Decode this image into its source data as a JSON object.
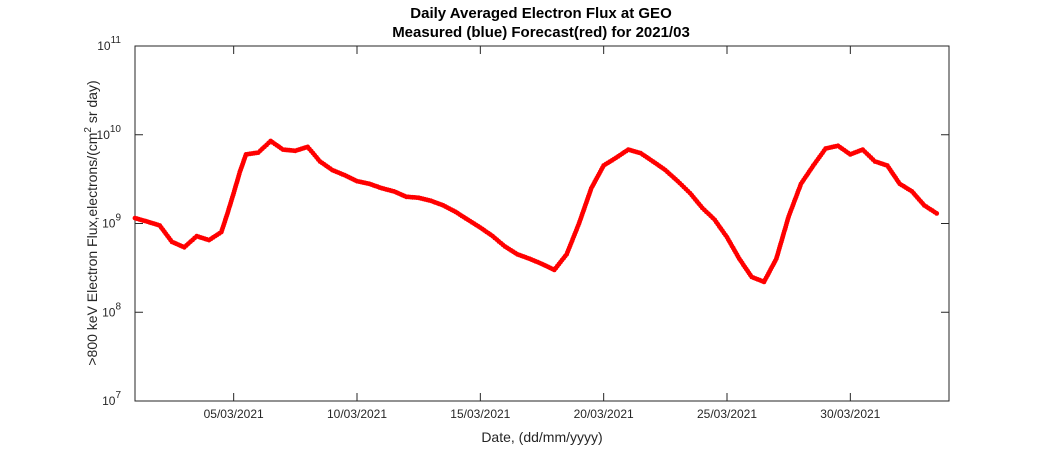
{
  "chart_data": {
    "type": "scatter",
    "title": "Daily Averaged Electron Flux at GEO",
    "subtitle": "Measured (blue) Forecast(red) for 2021/03",
    "xlabel": "Date, (dd/mm/yyyy)",
    "ylabel": ">800 keV Electron Flux,electrons/(cm^2 sr day)",
    "ylabel_parts": {
      "before": ">800 keV Electron Flux,electrons/(cm",
      "sup": "2",
      "after": " sr day)"
    },
    "y_scale": "log",
    "ylim": [
      10000000.0,
      100000000000.0
    ],
    "xlim": [
      "01/03/2021",
      "03/04/2021"
    ],
    "x_ticks": [
      "05/03/2021",
      "10/03/2021",
      "15/03/2021",
      "20/03/2021",
      "25/03/2021",
      "30/03/2021"
    ],
    "y_ticks": [
      {
        "value": 10000000.0,
        "base": "10",
        "exp": "7"
      },
      {
        "value": 100000000.0,
        "base": "10",
        "exp": "8"
      },
      {
        "value": 1000000000.0,
        "base": "10",
        "exp": "9"
      },
      {
        "value": 10000000000.0,
        "base": "10",
        "exp": "10"
      },
      {
        "value": 100000000000.0,
        "base": "10",
        "exp": "11"
      }
    ],
    "grid": false,
    "series": [
      {
        "color": "#ff0000",
        "points": [
          [
            "01/03/2021 00:00",
            1150000000.0
          ],
          [
            "01/03/2021 12:00",
            1050000000.0
          ],
          [
            "02/03/2021 00:00",
            950000000.0
          ],
          [
            "02/03/2021 12:00",
            620000000.0
          ],
          [
            "03/03/2021 00:00",
            540000000.0
          ],
          [
            "03/03/2021 12:00",
            720000000.0
          ],
          [
            "04/03/2021 00:00",
            650000000.0
          ],
          [
            "04/03/2021 12:00",
            800000000.0
          ],
          [
            "04/03/2021 18:00",
            1300000000.0
          ],
          [
            "05/03/2021 00:00",
            2200000000.0
          ],
          [
            "05/03/2021 06:00",
            3800000000.0
          ],
          [
            "05/03/2021 12:00",
            6000000000.0
          ],
          [
            "06/03/2021 00:00",
            6300000000.0
          ],
          [
            "06/03/2021 12:00",
            8500000000.0
          ],
          [
            "07/03/2021 00:00",
            6800000000.0
          ],
          [
            "07/03/2021 12:00",
            6600000000.0
          ],
          [
            "08/03/2021 00:00",
            7300000000.0
          ],
          [
            "08/03/2021 12:00",
            5000000000.0
          ],
          [
            "09/03/2021 00:00",
            4000000000.0
          ],
          [
            "09/03/2021 12:00",
            3500000000.0
          ],
          [
            "10/03/2021 00:00",
            3000000000.0
          ],
          [
            "10/03/2021 12:00",
            2800000000.0
          ],
          [
            "11/03/2021 00:00",
            2500000000.0
          ],
          [
            "11/03/2021 12:00",
            2300000000.0
          ],
          [
            "12/03/2021 00:00",
            2000000000.0
          ],
          [
            "12/03/2021 12:00",
            1950000000.0
          ],
          [
            "13/03/2021 00:00",
            1800000000.0
          ],
          [
            "13/03/2021 12:00",
            1600000000.0
          ],
          [
            "14/03/2021 00:00",
            1350000000.0
          ],
          [
            "14/03/2021 12:00",
            1100000000.0
          ],
          [
            "15/03/2021 00:00",
            900000000.0
          ],
          [
            "15/03/2021 12:00",
            720000000.0
          ],
          [
            "16/03/2021 00:00",
            550000000.0
          ],
          [
            "16/03/2021 12:00",
            450000000.0
          ],
          [
            "17/03/2021 00:00",
            400000000.0
          ],
          [
            "17/03/2021 12:00",
            350000000.0
          ],
          [
            "18/03/2021 00:00",
            300000000.0
          ],
          [
            "18/03/2021 12:00",
            450000000.0
          ],
          [
            "19/03/2021 00:00",
            1000000000.0
          ],
          [
            "19/03/2021 12:00",
            2500000000.0
          ],
          [
            "20/03/2021 00:00",
            4500000000.0
          ],
          [
            "20/03/2021 12:00",
            5500000000.0
          ],
          [
            "21/03/2021 00:00",
            6800000000.0
          ],
          [
            "21/03/2021 12:00",
            6200000000.0
          ],
          [
            "22/03/2021 00:00",
            5000000000.0
          ],
          [
            "22/03/2021 12:00",
            4000000000.0
          ],
          [
            "23/03/2021 00:00",
            3000000000.0
          ],
          [
            "23/03/2021 12:00",
            2200000000.0
          ],
          [
            "24/03/2021 00:00",
            1500000000.0
          ],
          [
            "24/03/2021 12:00",
            1100000000.0
          ],
          [
            "25/03/2021 00:00",
            700000000.0
          ],
          [
            "25/03/2021 12:00",
            400000000.0
          ],
          [
            "26/03/2021 00:00",
            250000000.0
          ],
          [
            "26/03/2021 12:00",
            220000000.0
          ],
          [
            "27/03/2021 00:00",
            400000000.0
          ],
          [
            "27/03/2021 12:00",
            1200000000.0
          ],
          [
            "28/03/2021 00:00",
            2800000000.0
          ],
          [
            "28/03/2021 12:00",
            4500000000.0
          ],
          [
            "29/03/2021 00:00",
            7000000000.0
          ],
          [
            "29/03/2021 12:00",
            7500000000.0
          ],
          [
            "30/03/2021 00:00",
            6000000000.0
          ],
          [
            "30/03/2021 12:00",
            6800000000.0
          ],
          [
            "31/03/2021 00:00",
            5000000000.0
          ],
          [
            "31/03/2021 12:00",
            4500000000.0
          ],
          [
            "01/04/2021 00:00",
            2800000000.0
          ],
          [
            "01/04/2021 12:00",
            2300000000.0
          ],
          [
            "02/04/2021 00:00",
            1600000000.0
          ],
          [
            "02/04/2021 12:00",
            1300000000.0
          ]
        ]
      }
    ]
  }
}
